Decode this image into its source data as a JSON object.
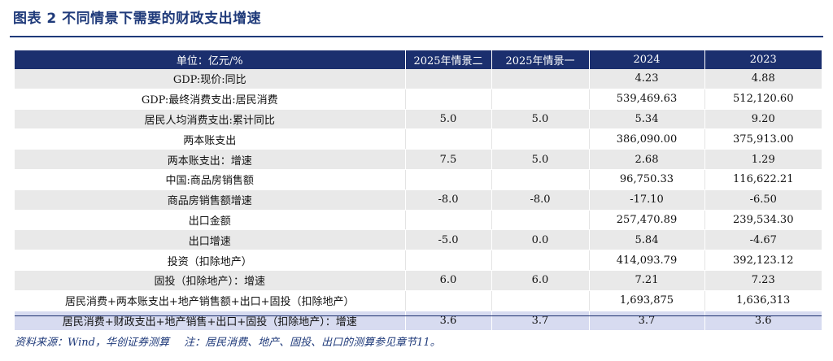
{
  "title": "图表 2   不同情景下需要的财政支出增速",
  "table": {
    "headers": [
      "单位：亿元/%",
      "2025年情景二",
      "2025年情景一",
      "2024",
      "2023"
    ],
    "rows": [
      {
        "label": "GDP:现价:同比",
        "s2": "",
        "s1": "",
        "y2024": "4.23",
        "y2023": "4.88"
      },
      {
        "label": "GDP:最终消费支出:居民消费",
        "s2": "",
        "s1": "",
        "y2024": "539,469.63",
        "y2023": "512,120.60"
      },
      {
        "label": "居民人均消费支出:累计同比",
        "s2": "5.0",
        "s1": "5.0",
        "y2024": "5.34",
        "y2023": "9.20"
      },
      {
        "label": "两本账支出",
        "s2": "",
        "s1": "",
        "y2024": "386,090.00",
        "y2023": "375,913.00"
      },
      {
        "label": "两本账支出：增速",
        "s2": "7.5",
        "s1": "5.0",
        "y2024": "2.68",
        "y2023": "1.29"
      },
      {
        "label": "中国:商品房销售额",
        "s2": "",
        "s1": "",
        "y2024": "96,750.33",
        "y2023": "116,622.21"
      },
      {
        "label": "商品房销售额增速",
        "s2": "-8.0",
        "s1": "-8.0",
        "y2024": "-17.10",
        "y2023": "-6.50"
      },
      {
        "label": "出口金额",
        "s2": "",
        "s1": "",
        "y2024": "257,470.89",
        "y2023": "239,534.30"
      },
      {
        "label": "出口增速",
        "s2": "-5.0",
        "s1": "0.0",
        "y2024": "5.84",
        "y2023": "-4.67"
      },
      {
        "label": "投资（扣除地产）",
        "s2": "",
        "s1": "",
        "y2024": "414,093.79",
        "y2023": "392,123.12"
      },
      {
        "label": "固投（扣除地产）：增速",
        "s2": "6.0",
        "s1": "6.0",
        "y2024": "7.21",
        "y2023": "7.23"
      },
      {
        "label": "居民消费+两本账支出+地产销售额+出口+固投（扣除地产）",
        "s2": "",
        "s1": "",
        "y2024": "1,693,875",
        "y2023": "1,636,313"
      },
      {
        "label": "居民消费+财政支出+地产销售+出口+固投（扣除地产）：增速",
        "s2": "3.6",
        "s1": "3.7",
        "y2024": "3.7",
        "y2023": "3.6"
      }
    ]
  },
  "note": {
    "source": "资料来源：Wind，华创证券测算",
    "remark": "注：居民消费、地产、固投、出口的测算参见章节11。"
  },
  "colors": {
    "header_bg": "#1b2f6e",
    "title_color": "#1f3a7a",
    "highlight_row": "#d7dbf0",
    "stripe_row": "#e9e9e9"
  }
}
